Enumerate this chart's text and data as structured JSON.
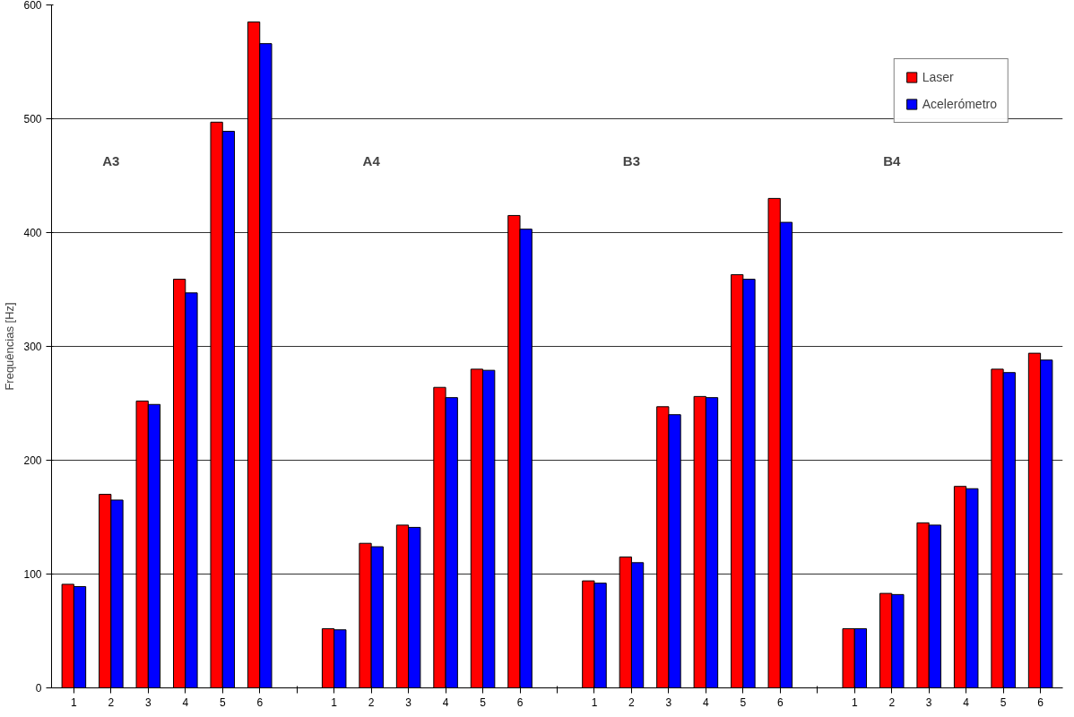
{
  "chart_data": {
    "type": "bar",
    "ylabel": "Frequências [Hz]",
    "categories": [
      "1",
      "2",
      "3",
      "4",
      "5",
      "6",
      null,
      "1",
      "2",
      "3",
      "4",
      "5",
      "6",
      null,
      "1",
      "2",
      "3",
      "4",
      "5",
      "6",
      null,
      "1",
      "2",
      "3",
      "4",
      "5",
      "6"
    ],
    "series": [
      {
        "name": "Laser",
        "color": "#ff0000",
        "values": [
          91,
          170,
          252,
          359,
          497,
          585,
          null,
          52,
          127,
          143,
          264,
          280,
          415,
          null,
          94,
          115,
          247,
          256,
          363,
          430,
          null,
          52,
          83,
          145,
          177,
          280,
          294
        ]
      },
      {
        "name": "Acelerómetro",
        "color": "#0000ff",
        "values": [
          89,
          165,
          249,
          347,
          489,
          566,
          null,
          51,
          124,
          141,
          255,
          279,
          403,
          null,
          92,
          110,
          240,
          255,
          359,
          409,
          null,
          52,
          82,
          143,
          175,
          277,
          288
        ]
      }
    ],
    "annotations": [
      "A3",
      "A4",
      "B3",
      "B4"
    ],
    "ylim": [
      0,
      600
    ],
    "yticks": [
      0,
      100,
      200,
      300,
      400,
      500,
      600
    ],
    "grid": "y",
    "legend": "top right"
  }
}
